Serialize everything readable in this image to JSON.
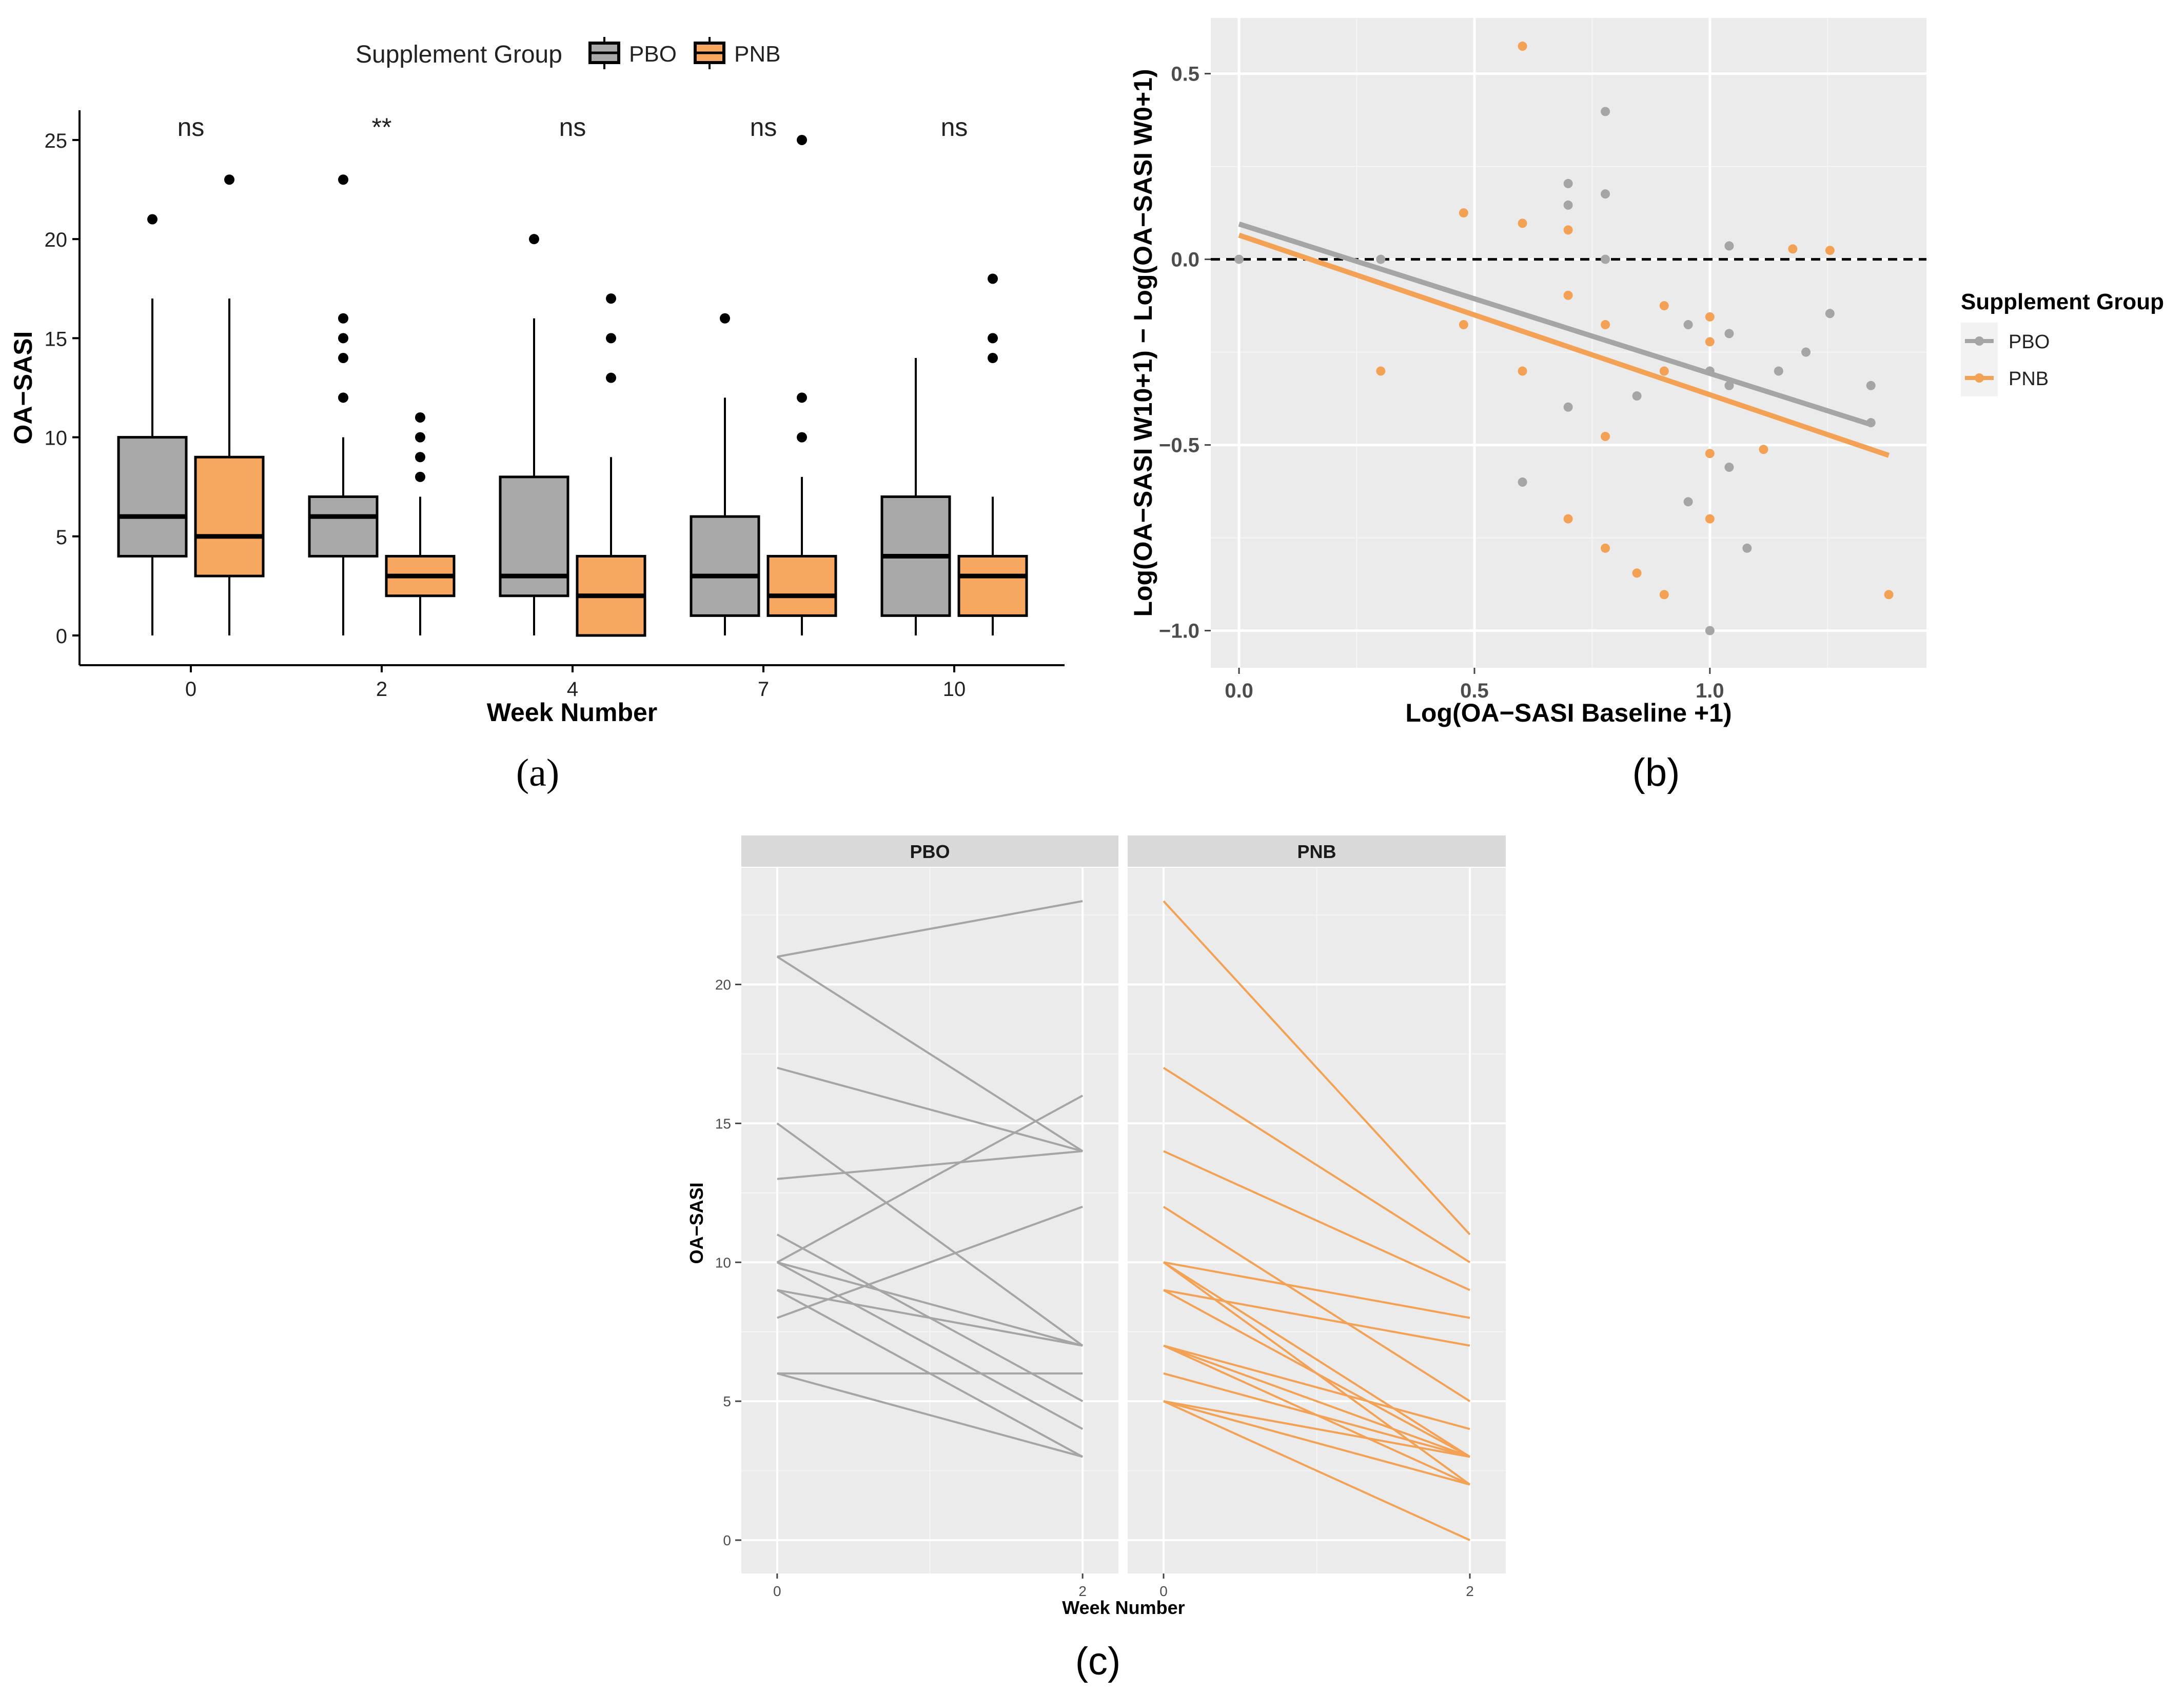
{
  "colors": {
    "pbo_fill": "#a9a9a9",
    "pnb_fill": "#f7a760",
    "pbo_line": "#a5a5a5",
    "pnb_line": "#f3a255",
    "panel_bg": "#ebebeb",
    "strip_bg": "#d9d9d9"
  },
  "chart_data": [
    {
      "type": "box",
      "panel_label": "(a)",
      "xlabel": "Week Number",
      "ylabel": "OA−SASI",
      "ylim": [
        -1.5,
        26.5
      ],
      "yticks": [
        "0",
        "5",
        "10",
        "15",
        "20",
        "25"
      ],
      "categories": [
        "0",
        "2",
        "4",
        "7",
        "10"
      ],
      "legend": {
        "title": "Supplement Group",
        "entries": [
          "PBO",
          "PNB"
        ],
        "position": "top"
      },
      "significance": [
        "ns",
        "**",
        "ns",
        "ns",
        "ns"
      ],
      "series": [
        {
          "name": "PBO",
          "boxes": [
            {
              "week": "0",
              "q1": 4,
              "median": 6,
              "q3": 10,
              "lower": 0,
              "upper": 17,
              "outliers": [
                21
              ]
            },
            {
              "week": "2",
              "q1": 4,
              "median": 6,
              "q3": 7,
              "lower": 0,
              "upper": 10,
              "outliers": [
                12,
                14,
                15,
                16,
                23
              ]
            },
            {
              "week": "4",
              "q1": 2,
              "median": 3,
              "q3": 8,
              "lower": 0,
              "upper": 16,
              "outliers": [
                20
              ]
            },
            {
              "week": "7",
              "q1": 1,
              "median": 3,
              "q3": 6,
              "lower": 0,
              "upper": 12,
              "outliers": [
                16
              ]
            },
            {
              "week": "10",
              "q1": 1,
              "median": 4,
              "q3": 7,
              "lower": 0,
              "upper": 14,
              "outliers": []
            }
          ]
        },
        {
          "name": "PNB",
          "boxes": [
            {
              "week": "0",
              "q1": 3,
              "median": 5,
              "q3": 9,
              "lower": 0,
              "upper": 17,
              "outliers": [
                23
              ]
            },
            {
              "week": "2",
              "q1": 2,
              "median": 3,
              "q3": 4,
              "lower": 0,
              "upper": 7,
              "outliers": [
                8,
                9,
                10,
                11
              ]
            },
            {
              "week": "4",
              "q1": 0,
              "median": 2,
              "q3": 4,
              "lower": 0,
              "upper": 9,
              "outliers": [
                13,
                15,
                17
              ]
            },
            {
              "week": "7",
              "q1": 1,
              "median": 2,
              "q3": 4,
              "lower": 0,
              "upper": 8,
              "outliers": [
                10,
                12,
                25
              ]
            },
            {
              "week": "10",
              "q1": 1,
              "median": 3,
              "q3": 4,
              "lower": 0,
              "upper": 7,
              "outliers": [
                14,
                15,
                18
              ]
            }
          ]
        }
      ]
    },
    {
      "type": "scatter",
      "panel_label": "(b)",
      "xlabel": "Log(OA−SASI Baseline +1)",
      "ylabel": "Log(OA−SASI W10+1) − Log(OA−SASI W0+1)",
      "xlim": [
        -0.06,
        1.46
      ],
      "ylim": [
        -1.1,
        0.65
      ],
      "xticks": [
        "0.0",
        "0.5",
        "1.0"
      ],
      "yticks": [
        "0.5",
        "0.0",
        "−0.5",
        "−1.0"
      ],
      "reference_line_y": 0,
      "legend": {
        "title": "Supplement Group",
        "entries": [
          "PBO",
          "PNB"
        ],
        "position": "right"
      },
      "series": [
        {
          "name": "PBO",
          "points": [
            [
              0,
              0
            ],
            [
              0.301,
              0
            ],
            [
              0.602,
              -0.6
            ],
            [
              0.699,
              0.204
            ],
            [
              0.699,
              0.146
            ],
            [
              0.699,
              -0.398
            ],
            [
              0.778,
              0.398
            ],
            [
              0.778,
              0.176
            ],
            [
              0.778,
              0
            ],
            [
              0.845,
              -0.368
            ],
            [
              0.954,
              -0.176
            ],
            [
              0.954,
              -0.653
            ],
            [
              1.0,
              -0.301
            ],
            [
              1.0,
              -1.0
            ],
            [
              1.041,
              0.036
            ],
            [
              1.041,
              -0.2
            ],
            [
              1.041,
              -0.34
            ],
            [
              1.041,
              -0.56
            ],
            [
              1.079,
              -0.778
            ],
            [
              1.146,
              -0.301
            ],
            [
              1.204,
              -0.25
            ],
            [
              1.255,
              -0.146
            ],
            [
              1.342,
              -0.34
            ],
            [
              1.342,
              -0.44
            ]
          ],
          "fit": [
            [
              0,
              0.095
            ],
            [
              1.342,
              -0.445
            ]
          ]
        },
        {
          "name": "PNB",
          "points": [
            [
              0.301,
              -0.301
            ],
            [
              0.477,
              0.125
            ],
            [
              0.477,
              -0.176
            ],
            [
              0.602,
              0.574
            ],
            [
              0.602,
              0.097
            ],
            [
              0.602,
              -0.301
            ],
            [
              0.699,
              0.079
            ],
            [
              0.699,
              -0.097
            ],
            [
              0.699,
              -0.699
            ],
            [
              0.778,
              -0.176
            ],
            [
              0.778,
              -0.477
            ],
            [
              0.778,
              -0.778
            ],
            [
              0.845,
              -0.845
            ],
            [
              0.903,
              -0.125
            ],
            [
              0.903,
              -0.301
            ],
            [
              0.903,
              -0.903
            ],
            [
              1.0,
              -0.155
            ],
            [
              1.0,
              -0.222
            ],
            [
              1.0,
              -0.523
            ],
            [
              1.0,
              -0.699
            ],
            [
              1.114,
              -0.512
            ],
            [
              1.176,
              0.028
            ],
            [
              1.255,
              0.024
            ],
            [
              1.38,
              -0.903
            ]
          ],
          "fit": [
            [
              0,
              0.065
            ],
            [
              1.38,
              -0.528
            ]
          ]
        }
      ]
    },
    {
      "type": "line",
      "panel_label": "(c)",
      "xlabel": "Week Number",
      "ylabel": "OA−SASI",
      "xticks": [
        "0",
        "2"
      ],
      "yticks": [
        "0",
        "5",
        "10",
        "15",
        "20"
      ],
      "ylim": [
        -1.2,
        24.2
      ],
      "facets": [
        {
          "name": "PBO",
          "lines": [
            [
              21,
              23
            ],
            [
              21,
              14
            ],
            [
              17,
              14
            ],
            [
              15,
              7
            ],
            [
              13,
              14
            ],
            [
              11,
              5
            ],
            [
              10,
              16
            ],
            [
              10,
              7
            ],
            [
              10,
              4
            ],
            [
              9,
              7
            ],
            [
              9,
              3
            ],
            [
              8,
              12
            ],
            [
              6,
              6
            ],
            [
              6,
              3
            ]
          ]
        },
        {
          "name": "PNB",
          "lines": [
            [
              23,
              11
            ],
            [
              17,
              10
            ],
            [
              14,
              9
            ],
            [
              12,
              5
            ],
            [
              10,
              8
            ],
            [
              10,
              3
            ],
            [
              10,
              2
            ],
            [
              9,
              7
            ],
            [
              9,
              3
            ],
            [
              7,
              4
            ],
            [
              7,
              3
            ],
            [
              7,
              2
            ],
            [
              6,
              3
            ],
            [
              5,
              3
            ],
            [
              5,
              2
            ],
            [
              5,
              0
            ]
          ]
        }
      ]
    }
  ]
}
